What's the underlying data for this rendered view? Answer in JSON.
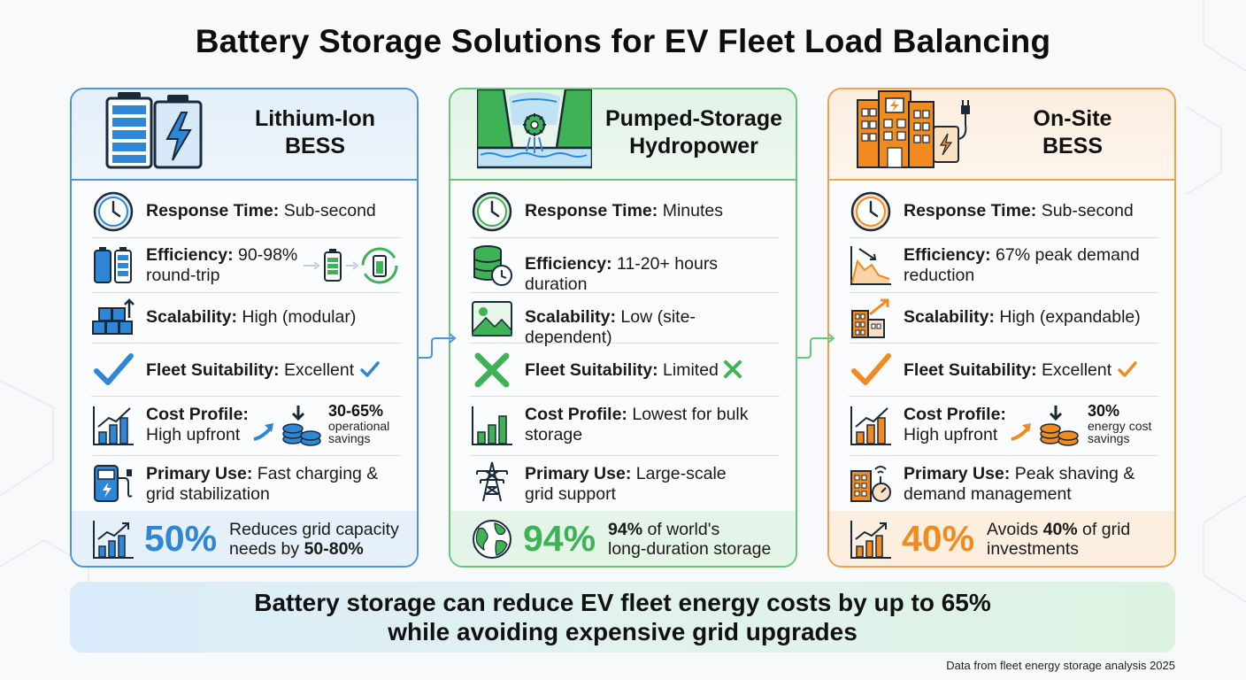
{
  "title": "Battery Storage Solutions for EV Fleet Load Balancing",
  "colors": {
    "blue": "#2f86d4",
    "green": "#3fb255",
    "orange": "#f18b1f"
  },
  "cards": [
    {
      "title_line1": "Lithium-Ion",
      "title_line2": "BESS",
      "header_icon": "battery-bolt-icon",
      "rows": [
        {
          "icon": "clock-icon",
          "label": "Response Time:",
          "value": "Sub-second"
        },
        {
          "icon": "battery-icon",
          "label": "Efficiency:",
          "value": "90-98%",
          "value2": "round-trip"
        },
        {
          "icon": "modular-blocks-icon",
          "label": "Scalability:",
          "value": "High (modular)"
        },
        {
          "icon": "checkmark-icon",
          "label": "Fleet Suitability:",
          "value": "Excellent"
        },
        {
          "icon": "bar-chart-icon",
          "label": "Cost Profile:",
          "value": "High upfront",
          "stat": "30-65%",
          "stat_line1": "operational",
          "stat_line2": "savings"
        },
        {
          "icon": "charging-station-icon",
          "label": "Primary Use:",
          "value": "Fast charging &",
          "value2": "grid stabilization"
        }
      ],
      "footer": {
        "icon": "growth-chart-icon",
        "percent": "50%",
        "text1": "Reduces grid capacity",
        "text2_prefix": "needs by ",
        "text2_bold": "50-80%"
      }
    },
    {
      "title_line1": "Pumped-Storage",
      "title_line2": "Hydropower",
      "header_icon": "hydro-dam-icon",
      "rows": [
        {
          "icon": "clock-icon",
          "label": "Response Time:",
          "value": "Minutes"
        },
        {
          "icon": "storage-timer-icon",
          "label": "Efficiency:",
          "value": "11-20+ hours duration"
        },
        {
          "icon": "landscape-icon",
          "label": "Scalability:",
          "value": "Low (site-dependent)"
        },
        {
          "icon": "cross-icon",
          "label": "Fleet Suitability:",
          "value": "Limited"
        },
        {
          "icon": "bar-chart-icon",
          "label": "Cost Profile:",
          "value": "Lowest for bulk",
          "value2": "storage"
        },
        {
          "icon": "transmission-tower-icon",
          "label": "Primary Use:",
          "value": "Large-scale",
          "value2": "grid support"
        }
      ],
      "footer": {
        "icon": "globe-icon",
        "percent": "94%",
        "text1_bold": "94%",
        "text1": " of world's",
        "text2": "long-duration storage"
      }
    },
    {
      "title_line1": "On-Site",
      "title_line2": "BESS",
      "header_icon": "building-charger-icon",
      "rows": [
        {
          "icon": "clock-icon",
          "label": "Response Time:",
          "value": "Sub-second"
        },
        {
          "icon": "peak-reduction-icon",
          "label": "Efficiency:",
          "value": "67% peak demand",
          "value2": "reduction"
        },
        {
          "icon": "building-growth-icon",
          "label": "Scalability:",
          "value": "High (expandable)"
        },
        {
          "icon": "checkmark-icon",
          "label": "Fleet Suitability:",
          "value": "Excellent"
        },
        {
          "icon": "bar-chart-icon",
          "label": "Cost Profile:",
          "value": "High upfront",
          "stat": "30%",
          "stat_line1": "energy cost",
          "stat_line2": "savings"
        },
        {
          "icon": "smart-building-icon",
          "label": "Primary Use:",
          "value": "Peak shaving &",
          "value2": "demand management"
        }
      ],
      "footer": {
        "icon": "growth-chart-icon",
        "percent": "40%",
        "text1_prefix": "Avoids ",
        "text1_bold": "40%",
        "text1": " of grid",
        "text2": "investments"
      }
    }
  ],
  "banner": {
    "line1": "Battery storage can reduce EV fleet energy costs by up to 65%",
    "line2": "while avoiding expensive grid upgrades"
  },
  "source": "Data from fleet energy storage analysis 2025"
}
